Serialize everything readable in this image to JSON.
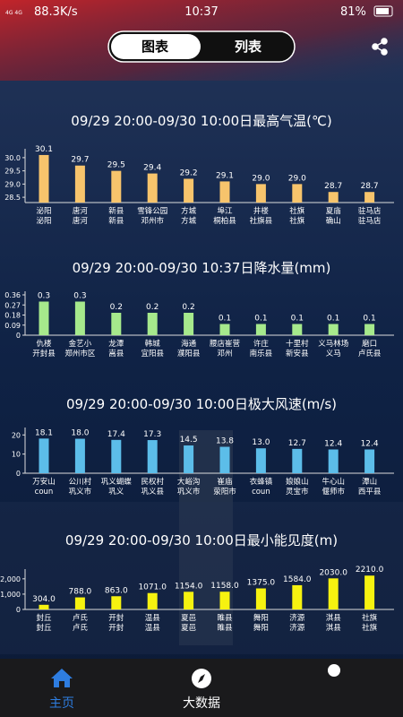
{
  "status_bar": {
    "network": "88.3K/s",
    "time": "10:37",
    "battery": "81%"
  },
  "tabs": [
    "图表",
    "列表"
  ],
  "nav": [
    "主页",
    "大数据"
  ],
  "chart_data": [
    {
      "type": "bar",
      "title": "09/29 20:00-09/30 10:00日最高气温(℃)",
      "color": "#f7c46c",
      "categories": [
        [
          "泌阳",
          "泌阳"
        ],
        [
          "唐河",
          "唐河"
        ],
        [
          "新县",
          "新县"
        ],
        [
          "雪锋公园",
          "邓州市"
        ],
        [
          "方城",
          "方城"
        ],
        [
          "埠江",
          "桐柏县"
        ],
        [
          "井楼",
          "社旗县"
        ],
        [
          "社旗",
          "社旗"
        ],
        [
          "夏庙",
          "确山"
        ],
        [
          "驻马店",
          "驻马店"
        ]
      ],
      "values": [
        30.1,
        29.7,
        29.5,
        29.4,
        29.2,
        29.1,
        29.0,
        29.0,
        28.7,
        28.7
      ],
      "value_labels": [
        "30.1",
        "29.7",
        "29.5",
        "29.4",
        "29.2",
        "29.1",
        "29.0",
        "29.0",
        "28.7",
        "28.7"
      ],
      "ylim": [
        28.3,
        30.2
      ],
      "yticks": [
        28.5,
        {
          "value": 29,
          "label": "29.0"
        },
        29.5,
        {
          "value": 30,
          "label": "30.0"
        }
      ]
    },
    {
      "type": "bar",
      "title": "09/29 20:00-09/30 10:37日降水量(mm)",
      "color": "#a6e98c",
      "categories": [
        [
          "仇楼",
          "开封县"
        ],
        [
          "金艺小",
          "郑州市区"
        ],
        [
          "龙潭",
          "嵩县"
        ],
        [
          "韩城",
          "宜阳县"
        ],
        [
          "海通",
          "濮阳县"
        ],
        [
          "腰店崔营",
          "邓州"
        ],
        [
          "许庄",
          "南乐县"
        ],
        [
          "十里村",
          "新安县"
        ],
        [
          "义马林场",
          "义马"
        ],
        [
          "磨口",
          "卢氏县"
        ]
      ],
      "values": [
        0.3,
        0.3,
        0.2,
        0.2,
        0.2,
        0.1,
        0.1,
        0.1,
        0.1,
        0.1
      ],
      "ylim": [
        0,
        0.36
      ],
      "yticks": [
        0,
        0.09,
        0.18,
        0.27,
        0.36
      ]
    },
    {
      "type": "bar",
      "title": "09/29 20:00-09/30 10:00日极大风速(m/s)",
      "color": "#5cbde9",
      "categories": [
        [
          "万安山",
          "coun"
        ],
        [
          "公川村",
          "巩义市"
        ],
        [
          "巩义蝴蝶",
          "巩义"
        ],
        [
          "民权村",
          "巩义县"
        ],
        [
          "大峪沟",
          "巩义市"
        ],
        [
          "崔庙",
          "荥阳市"
        ],
        [
          "衣蜂镇",
          "coun"
        ],
        [
          "娘娘山",
          "灵宝市"
        ],
        [
          "牛心山",
          "偃师市"
        ],
        [
          "潭山",
          "西平县"
        ]
      ],
      "values": [
        18.1,
        18.0,
        17.4,
        17.3,
        14.5,
        13.8,
        13.0,
        12.7,
        12.4,
        12.4
      ],
      "value_labels": [
        "18.1",
        "18.0",
        "17.4",
        "17.3",
        "14.5",
        "13.8",
        "13.0",
        "12.7",
        "12.4",
        "12.4"
      ],
      "ylim": [
        0,
        22
      ],
      "yticks": [
        0,
        10,
        20
      ]
    },
    {
      "type": "bar",
      "title": "09/29 20:00-09/30 10:00日最小能见度(m)",
      "color": "#f6f210",
      "categories": [
        [
          "封丘",
          "封丘"
        ],
        [
          "卢氏",
          "卢氏"
        ],
        [
          "开封",
          "开封"
        ],
        [
          "温县",
          "温县"
        ],
        [
          "夏邑",
          "夏邑"
        ],
        [
          "睢县",
          "睢县"
        ],
        [
          "舞阳",
          "舞阳"
        ],
        [
          "济源",
          "济源"
        ],
        [
          "淇县",
          "淇县"
        ],
        [
          "社旗",
          "社旗"
        ]
      ],
      "values": [
        304,
        788,
        863,
        1071,
        1154,
        1158,
        1375,
        1584,
        2030,
        2210
      ],
      "value_labels": [
        "304.0",
        "788.0",
        "863.0",
        "1071.0",
        "1154.0",
        "1158.0",
        "1375.0",
        "1584.0",
        "2030.0",
        "2210.0"
      ],
      "ylim": [
        0,
        2400
      ],
      "yticks": [
        0,
        {
          "value": 1000,
          "label": "1,000"
        },
        {
          "value": 2000,
          "label": "2,000"
        }
      ]
    }
  ]
}
